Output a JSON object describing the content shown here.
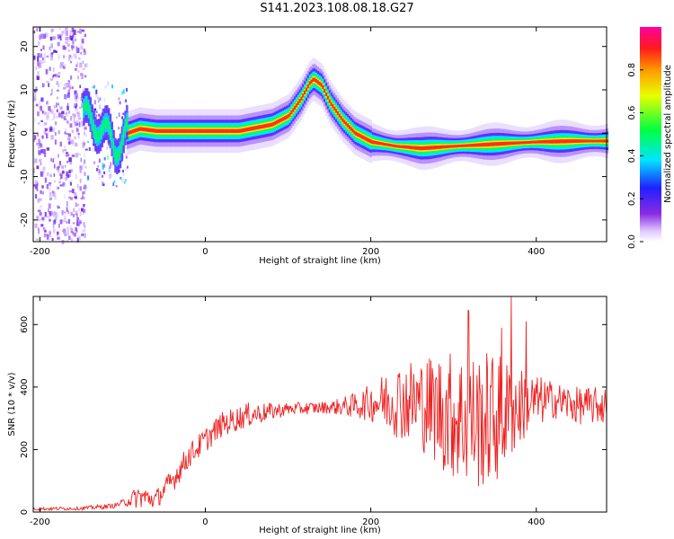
{
  "title": "S141.2023.108.08.18.G27",
  "chart_data": [
    {
      "type": "heatmap",
      "xlabel": "Height of straight line (km)",
      "ylabel": "Frequency (Hz)",
      "xlim": [
        -208,
        485
      ],
      "ylim": [
        -25,
        24.5
      ],
      "xticks": [
        -200,
        0,
        200,
        400
      ],
      "yticks": [
        -20,
        -10,
        0,
        10,
        20
      ],
      "colorbar": {
        "label": "Normalized spectral amplitude",
        "range": [
          0,
          1
        ],
        "ticks": [
          "0.0",
          "0.2",
          "0.4",
          "0.6",
          "0.8"
        ],
        "colormap": "rainbow (white, purple, blue, cyan, green, yellow, orange, red, magenta)"
      },
      "ridge": {
        "description": "peak frequency track",
        "x": [
          -150,
          -130,
          -110,
          -95,
          -80,
          -60,
          -20,
          0,
          40,
          80,
          100,
          115,
          125,
          130,
          140,
          150,
          165,
          180,
          200,
          230,
          260,
          300,
          350,
          400,
          450,
          485
        ],
        "y": [
          4,
          2,
          -3,
          0,
          1,
          0.5,
          0.5,
          0.5,
          0.5,
          2,
          4,
          8,
          11.5,
          12.5,
          11,
          7,
          3,
          0,
          -2,
          -3,
          -3.5,
          -3,
          -2.5,
          -2,
          -1.8,
          -1.8
        ]
      },
      "noise_region": {
        "x_from": -208,
        "x_to": -145,
        "y_from": -25,
        "y_to": 24.5
      }
    },
    {
      "type": "line",
      "xlabel": "Height of straight line (km)",
      "ylabel": "SNR (10 * v/v)",
      "xlim": [
        -208,
        485
      ],
      "ylim": [
        0,
        690
      ],
      "xticks": [
        -200,
        0,
        200,
        400
      ],
      "yticks": [
        0,
        200,
        400,
        600
      ],
      "series": [
        {
          "color": "#ee2222",
          "envelope_x": [
            -208,
            -150,
            -110,
            -100,
            -80,
            -60,
            -40,
            -20,
            0,
            20,
            50,
            100,
            150,
            180,
            200,
            230,
            260,
            290,
            310,
            330,
            350,
            370,
            390,
            420,
            450,
            485
          ],
          "envelope_mean": [
            10,
            12,
            20,
            30,
            50,
            40,
            100,
            180,
            230,
            280,
            310,
            330,
            335,
            340,
            350,
            360,
            350,
            320,
            300,
            290,
            300,
            320,
            350,
            360,
            340,
            340
          ],
          "envelope_amp": [
            5,
            6,
            8,
            10,
            40,
            30,
            40,
            40,
            40,
            40,
            40,
            20,
            20,
            40,
            60,
            120,
            150,
            200,
            220,
            220,
            220,
            160,
            100,
            60,
            60,
            60
          ],
          "peaks": [
            {
              "x": 318,
              "y": 645
            },
            {
              "x": 370,
              "y": 690
            },
            {
              "x": 358,
              "y": 590
            },
            {
              "x": 388,
              "y": 610
            }
          ]
        }
      ]
    }
  ]
}
